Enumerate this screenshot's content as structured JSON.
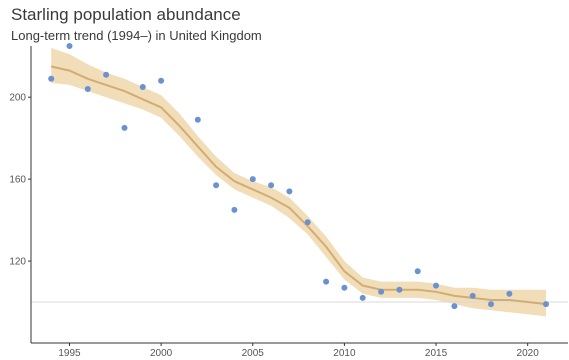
{
  "chart_data": {
    "type": "scatter",
    "title": "Starling population abundance",
    "subtitle": "Long-term trend (1994–) in United Kingdom",
    "xlabel": "",
    "ylabel": "",
    "xlim": [
      1992.9,
      2022.2
    ],
    "ylim": [
      80,
      225
    ],
    "x_ticks": [
      1995,
      2000,
      2005,
      2010,
      2015,
      2020
    ],
    "y_ticks": [
      120,
      160,
      200
    ],
    "reference_line": 100,
    "grid": false,
    "series": [
      {
        "kind": "points",
        "x": [
          1994,
          1995,
          1996,
          1997,
          1998,
          1999,
          2000,
          2002,
          2003,
          2004,
          2005,
          2006,
          2007,
          2008,
          2009,
          2010,
          2011,
          2012,
          2013,
          2014,
          2015,
          2016,
          2017,
          2018,
          2019,
          2021
        ],
        "y": [
          209,
          225,
          204,
          211,
          185,
          205,
          208,
          189,
          157,
          145,
          160,
          157,
          154,
          139,
          110,
          107,
          102,
          105,
          106,
          115,
          108,
          98,
          103,
          99,
          104,
          99
        ]
      },
      {
        "kind": "trend",
        "x": [
          1994,
          1995,
          1996,
          1997,
          1998,
          1999,
          2000,
          2001,
          2002,
          2003,
          2004,
          2005,
          2006,
          2007,
          2008,
          2009,
          2010,
          2011,
          2012,
          2013,
          2014,
          2015,
          2016,
          2017,
          2018,
          2019,
          2020,
          2021
        ],
        "y": [
          215,
          213,
          209,
          206,
          203,
          199,
          195,
          186,
          176,
          166,
          159,
          155,
          151,
          146,
          137,
          127,
          115,
          108,
          106,
          106,
          106,
          105,
          103,
          102,
          101,
          101,
          100,
          99
        ],
        "lower": [
          207,
          206,
          203,
          200,
          197,
          194,
          190,
          181,
          171,
          162,
          155,
          151,
          147,
          141,
          133,
          122,
          111,
          104,
          102,
          102,
          102,
          101,
          99,
          97,
          96,
          95,
          94,
          93
        ],
        "upper": [
          224,
          221,
          216,
          212,
          209,
          205,
          201,
          192,
          181,
          171,
          163,
          159,
          156,
          151,
          142,
          132,
          120,
          112,
          110,
          110,
          110,
          109,
          107,
          107,
          106,
          106,
          106,
          106
        ]
      }
    ],
    "colors": {
      "points": "#6a92d1",
      "trend_line": "#d2ad73",
      "band": "#f0d7ad",
      "axis": "#333333",
      "reference": "#d9d9d9"
    }
  }
}
